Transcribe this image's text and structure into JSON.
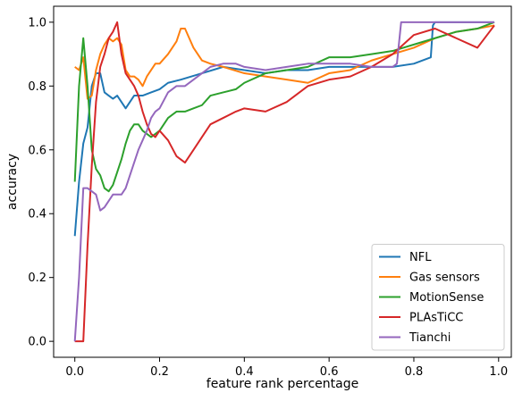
{
  "chart_data": {
    "type": "line",
    "xlabel": "feature rank percentage",
    "ylabel": "accuracy",
    "xlim": [
      -0.05,
      1.03
    ],
    "ylim": [
      -0.05,
      1.05
    ],
    "xticks": [
      0.0,
      0.2,
      0.4,
      0.6,
      0.8,
      1.0
    ],
    "xtick_labels": [
      "0.0",
      "0.2",
      "0.4",
      "0.6",
      "0.8",
      "1.0"
    ],
    "yticks": [
      0.0,
      0.2,
      0.4,
      0.6,
      0.8,
      1.0
    ],
    "ytick_labels": [
      "0.0",
      "0.2",
      "0.4",
      "0.6",
      "0.8",
      "1.0"
    ],
    "grid": false,
    "legend_position": "bottom-right",
    "series": [
      {
        "name": "NFL",
        "color": "#1f77b4",
        "x": [
          0.0,
          0.01,
          0.02,
          0.03,
          0.04,
          0.05,
          0.06,
          0.07,
          0.08,
          0.09,
          0.1,
          0.12,
          0.14,
          0.16,
          0.18,
          0.2,
          0.22,
          0.25,
          0.3,
          0.35,
          0.4,
          0.45,
          0.5,
          0.55,
          0.6,
          0.65,
          0.7,
          0.75,
          0.8,
          0.84,
          0.845,
          0.85,
          0.9,
          0.95,
          0.99
        ],
        "y": [
          0.33,
          0.5,
          0.62,
          0.67,
          0.8,
          0.84,
          0.84,
          0.78,
          0.77,
          0.76,
          0.77,
          0.73,
          0.77,
          0.77,
          0.78,
          0.79,
          0.81,
          0.82,
          0.84,
          0.86,
          0.85,
          0.84,
          0.85,
          0.85,
          0.86,
          0.86,
          0.86,
          0.86,
          0.87,
          0.89,
          0.99,
          1.0,
          1.0,
          1.0,
          1.0
        ]
      },
      {
        "name": "Gas sensors",
        "color": "#ff7f0e",
        "x": [
          0.0,
          0.01,
          0.02,
          0.03,
          0.04,
          0.05,
          0.06,
          0.07,
          0.08,
          0.09,
          0.1,
          0.11,
          0.12,
          0.13,
          0.14,
          0.15,
          0.16,
          0.17,
          0.18,
          0.19,
          0.2,
          0.22,
          0.24,
          0.25,
          0.26,
          0.27,
          0.28,
          0.3,
          0.32,
          0.35,
          0.4,
          0.45,
          0.5,
          0.55,
          0.6,
          0.65,
          0.7,
          0.75,
          0.8,
          0.85,
          0.9,
          0.95,
          0.99
        ],
        "y": [
          0.86,
          0.85,
          0.89,
          0.76,
          0.77,
          0.85,
          0.9,
          0.93,
          0.95,
          0.94,
          0.95,
          0.93,
          0.85,
          0.83,
          0.83,
          0.82,
          0.8,
          0.83,
          0.85,
          0.87,
          0.87,
          0.9,
          0.94,
          0.98,
          0.98,
          0.95,
          0.92,
          0.88,
          0.87,
          0.86,
          0.84,
          0.83,
          0.82,
          0.81,
          0.84,
          0.85,
          0.88,
          0.9,
          0.92,
          0.95,
          0.97,
          0.98,
          0.99
        ]
      },
      {
        "name": "MotionSense",
        "color": "#2ca02c",
        "x": [
          0.0,
          0.01,
          0.02,
          0.03,
          0.04,
          0.05,
          0.06,
          0.07,
          0.08,
          0.09,
          0.1,
          0.11,
          0.12,
          0.13,
          0.14,
          0.15,
          0.16,
          0.17,
          0.18,
          0.19,
          0.2,
          0.22,
          0.24,
          0.26,
          0.28,
          0.3,
          0.32,
          0.35,
          0.38,
          0.4,
          0.45,
          0.5,
          0.55,
          0.6,
          0.65,
          0.7,
          0.75,
          0.8,
          0.85,
          0.9,
          0.95,
          0.99
        ],
        "y": [
          0.5,
          0.8,
          0.95,
          0.8,
          0.6,
          0.54,
          0.52,
          0.48,
          0.47,
          0.49,
          0.53,
          0.57,
          0.62,
          0.66,
          0.68,
          0.68,
          0.66,
          0.65,
          0.64,
          0.65,
          0.66,
          0.7,
          0.72,
          0.72,
          0.73,
          0.74,
          0.77,
          0.78,
          0.79,
          0.81,
          0.84,
          0.85,
          0.86,
          0.89,
          0.89,
          0.9,
          0.91,
          0.93,
          0.95,
          0.97,
          0.98,
          1.0
        ]
      },
      {
        "name": "PLAsTiCC",
        "color": "#d62728",
        "x": [
          0.0,
          0.01,
          0.02,
          0.03,
          0.04,
          0.05,
          0.06,
          0.07,
          0.08,
          0.09,
          0.1,
          0.11,
          0.12,
          0.13,
          0.14,
          0.15,
          0.16,
          0.17,
          0.18,
          0.19,
          0.2,
          0.22,
          0.24,
          0.26,
          0.28,
          0.3,
          0.32,
          0.35,
          0.38,
          0.4,
          0.45,
          0.5,
          0.55,
          0.6,
          0.65,
          0.7,
          0.75,
          0.8,
          0.85,
          0.9,
          0.95,
          0.99
        ],
        "y": [
          0.0,
          0.0,
          0.0,
          0.3,
          0.55,
          0.75,
          0.86,
          0.9,
          0.95,
          0.97,
          1.0,
          0.9,
          0.84,
          0.82,
          0.8,
          0.77,
          0.72,
          0.68,
          0.65,
          0.64,
          0.66,
          0.63,
          0.58,
          0.56,
          0.6,
          0.64,
          0.68,
          0.7,
          0.72,
          0.73,
          0.72,
          0.75,
          0.8,
          0.82,
          0.83,
          0.86,
          0.9,
          0.96,
          0.98,
          0.95,
          0.92,
          0.99
        ]
      },
      {
        "name": "Tianchi",
        "color": "#9467bd",
        "x": [
          0.0,
          0.01,
          0.02,
          0.03,
          0.04,
          0.05,
          0.06,
          0.07,
          0.08,
          0.09,
          0.1,
          0.11,
          0.12,
          0.13,
          0.14,
          0.15,
          0.16,
          0.17,
          0.18,
          0.19,
          0.2,
          0.22,
          0.24,
          0.26,
          0.28,
          0.3,
          0.32,
          0.35,
          0.38,
          0.4,
          0.45,
          0.5,
          0.55,
          0.6,
          0.65,
          0.7,
          0.75,
          0.76,
          0.77,
          0.8,
          0.85,
          0.9,
          0.95,
          0.99
        ],
        "y": [
          0.0,
          0.2,
          0.48,
          0.48,
          0.47,
          0.46,
          0.41,
          0.42,
          0.44,
          0.46,
          0.46,
          0.46,
          0.48,
          0.52,
          0.56,
          0.6,
          0.63,
          0.66,
          0.7,
          0.72,
          0.73,
          0.78,
          0.8,
          0.8,
          0.82,
          0.84,
          0.86,
          0.87,
          0.87,
          0.86,
          0.85,
          0.86,
          0.87,
          0.87,
          0.87,
          0.86,
          0.86,
          0.87,
          1.0,
          1.0,
          1.0,
          1.0,
          1.0,
          1.0
        ]
      }
    ]
  }
}
